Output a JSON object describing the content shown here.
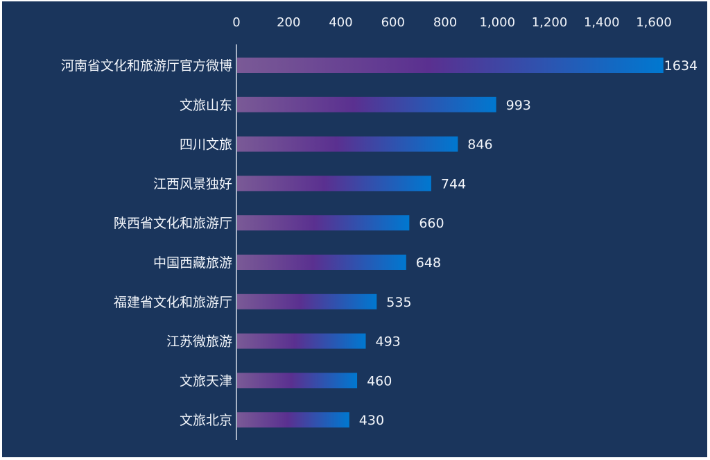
{
  "chart_data": {
    "type": "bar",
    "orientation": "horizontal",
    "categories": [
      "河南省文化和旅游厅官方微博",
      "文旅山东",
      "四川文旅",
      "江西风景独好",
      "陕西省文化和旅游厅",
      "中国西藏旅游",
      "福建省文化和旅游厅",
      "江苏微旅游",
      "文旅天津",
      "文旅北京"
    ],
    "values": [
      1634,
      993,
      846,
      744,
      660,
      648,
      535,
      493,
      460,
      430
    ],
    "xlim": [
      0,
      1600
    ],
    "xticks": [
      0,
      200,
      400,
      600,
      800,
      1000,
      1200,
      1400,
      1600
    ],
    "xtick_labels": [
      "0",
      "200",
      "400",
      "600",
      "800",
      "1,000",
      "1,200",
      "1,400",
      "1,600"
    ],
    "x_axis_position": "top",
    "grid": false,
    "legend": "none",
    "title": "",
    "xlabel": "",
    "ylabel": ""
  },
  "colors": {
    "background": "#1a355c",
    "bar_gradient": [
      "#7a5a96",
      "#5a3090",
      "#0078d0"
    ],
    "text": "#f3f6fb",
    "axis_line": "#d8dde8"
  }
}
